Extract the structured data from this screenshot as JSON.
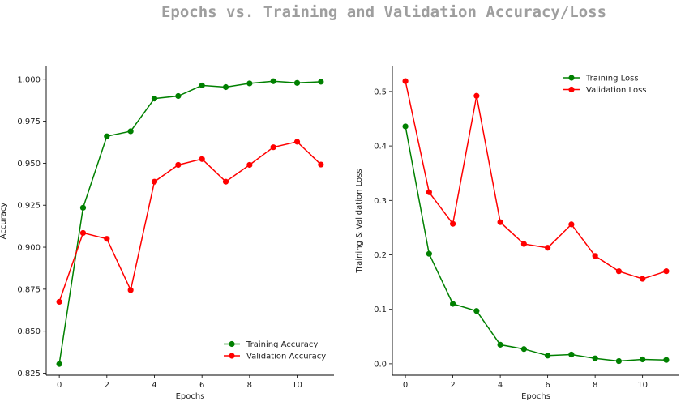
{
  "suptitle": "Epochs vs. Training and Validation Accuracy/Loss",
  "chart_data": [
    {
      "type": "line",
      "xlabel": "Epochs",
      "ylabel": "Accuracy",
      "xlim": [
        -0.55,
        11.55
      ],
      "ylim": [
        0.8238,
        1.0076
      ],
      "xticks": [
        0,
        2,
        4,
        6,
        8,
        10
      ],
      "xtick_labels": [
        "0",
        "2",
        "4",
        "6",
        "8",
        "10"
      ],
      "yticks": [
        0.825,
        0.85,
        0.875,
        0.9,
        0.925,
        0.95,
        0.975,
        1.0
      ],
      "ytick_labels": [
        "0.825",
        "0.850",
        "0.875",
        "0.900",
        "0.925",
        "0.950",
        "0.975",
        "1.000"
      ],
      "legend_position": "lower-right",
      "x": [
        0,
        1,
        2,
        3,
        4,
        5,
        6,
        7,
        8,
        9,
        10,
        11
      ],
      "series": [
        {
          "name": "Training Accuracy",
          "color": "#008000",
          "values": [
            0.8305,
            0.9235,
            0.966,
            0.969,
            0.9885,
            0.99,
            0.9963,
            0.9953,
            0.9975,
            0.9988,
            0.9978,
            0.9985
          ]
        },
        {
          "name": "Validation Accuracy",
          "color": "#ff0000",
          "values": [
            0.8675,
            0.9085,
            0.905,
            0.8745,
            0.939,
            0.949,
            0.9525,
            0.939,
            0.949,
            0.9595,
            0.9628,
            0.9492
          ]
        }
      ]
    },
    {
      "type": "line",
      "xlabel": "Epochs",
      "ylabel": "Training & Validation Loss",
      "xlim": [
        -0.55,
        11.55
      ],
      "ylim": [
        -0.021,
        0.546
      ],
      "xticks": [
        0,
        2,
        4,
        6,
        8,
        10
      ],
      "xtick_labels": [
        "0",
        "2",
        "4",
        "6",
        "8",
        "10"
      ],
      "yticks": [
        0.0,
        0.1,
        0.2,
        0.3,
        0.4,
        0.5
      ],
      "ytick_labels": [
        "0.0",
        "0.1",
        "0.2",
        "0.3",
        "0.4",
        "0.5"
      ],
      "legend_position": "upper-right",
      "x": [
        0,
        1,
        2,
        3,
        4,
        5,
        6,
        7,
        8,
        9,
        10,
        11
      ],
      "series": [
        {
          "name": "Training Loss",
          "color": "#008000",
          "values": [
            0.436,
            0.202,
            0.11,
            0.097,
            0.035,
            0.027,
            0.015,
            0.017,
            0.01,
            0.005,
            0.008,
            0.007
          ]
        },
        {
          "name": "Validation Loss",
          "color": "#ff0000",
          "values": [
            0.519,
            0.315,
            0.257,
            0.492,
            0.26,
            0.22,
            0.213,
            0.256,
            0.198,
            0.17,
            0.156,
            0.17
          ]
        }
      ]
    }
  ]
}
